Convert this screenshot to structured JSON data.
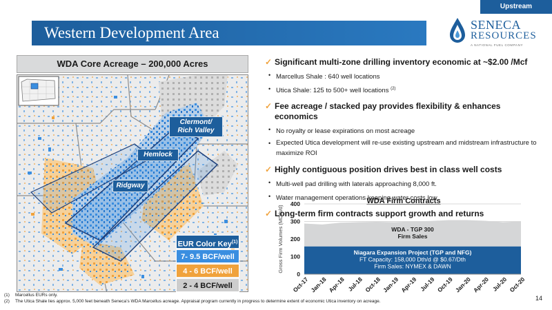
{
  "section_tag": "Upstream",
  "title": "Western Development Area",
  "logo": {
    "line1": "SENECA",
    "line2": "RESOURCES",
    "tagline": "A NATIONAL FUEL COMPANY",
    "accent_color": "#1d5e9c",
    "icon": "flame-drop-icon"
  },
  "left_panel": {
    "header": "WDA Core Acreage – 200,000 Acres",
    "map_labels": {
      "clermont": "Clermont/\nRich Valley",
      "hemlock": "Hemlock",
      "ridgway": "Ridgway"
    },
    "eur_key": {
      "title": "EUR Color Key",
      "title_footnote": "(1)",
      "items": [
        "7- 9.5 BCF/well",
        "4 - 6 BCF/well",
        "2 - 4 BCF/well"
      ],
      "colors": [
        "#3a8ee0",
        "#f0a23c",
        "#cdcdcd"
      ]
    }
  },
  "bullets": [
    {
      "heading": "Significant multi-zone drilling inventory economic at ~$2.00 /Mcf",
      "items": [
        {
          "text": "Marcellus Shale : 640 well locations",
          "sup": ""
        },
        {
          "text": "Utica Shale: 125 to 500+ well locations ",
          "sup": "(2)"
        }
      ]
    },
    {
      "heading": "Fee acreage / stacked pay provides flexibility & enhances economics",
      "items": [
        {
          "text": "No royalty or lease expirations on most acreage",
          "sup": ""
        },
        {
          "text": "Expected Utica development will re-use existing upstream and midstream infrastructure to maximize ROI",
          "sup": ""
        }
      ]
    },
    {
      "heading": "Highly contiguous position drives best in class well costs",
      "items": [
        {
          "text": "Multi-well pad drilling with laterals approaching 8,000 ft.",
          "sup": ""
        },
        {
          "text": "Water management operations keeping water costs low",
          "sup": ""
        }
      ]
    },
    {
      "heading": "Long-term firm contracts support growth and returns",
      "items": []
    }
  ],
  "chart_data": {
    "type": "area",
    "title": "WDA Firm Contracts",
    "ylabel": "Gross Firm Volumes (MDth/d)",
    "ylim": [
      0,
      400
    ],
    "yticks": [
      0,
      100,
      200,
      300,
      400
    ],
    "categories": [
      "Oct-17",
      "Jan-18",
      "Apr-18",
      "Jul-18",
      "Oct-18",
      "Jan-19",
      "Apr-19",
      "Jul-19",
      "Oct-19",
      "Jan-20",
      "Apr-20",
      "Jul-20",
      "Oct-20"
    ],
    "series": [
      {
        "name": "Niagara Expansion Project (TGP and NFG)",
        "values": [
          158,
          158,
          158,
          158,
          158,
          158,
          158,
          158,
          158,
          158,
          158,
          158,
          158
        ],
        "color": "#1d5e9c",
        "label_lines": [
          "Niagara Expansion Project (TGP and NFG)",
          "FT Capacity: 158,000 Dth/d @ $0.67/Dth",
          "Firm Sales: NYMEX & DAWN"
        ]
      },
      {
        "name": "WDA - TGP 300",
        "values": [
          130,
          125,
          135,
          138,
          140,
          138,
          142,
          145,
          150,
          150,
          146,
          138,
          142
        ],
        "color": "#d5d6d7",
        "label_lines": [
          "WDA - TGP 300",
          "Firm Sales"
        ]
      }
    ]
  },
  "footnotes": [
    {
      "num": "(1)",
      "text": "Marcellus EURs only."
    },
    {
      "num": "(2)",
      "text": "The Utica Shale lies approx. 5,000 feet beneath Seneca’s WDA Marcellus acreage.  Appraisal program currently in progress to determine extent of economic Utica inventory on acreage."
    }
  ],
  "page_number": "14"
}
